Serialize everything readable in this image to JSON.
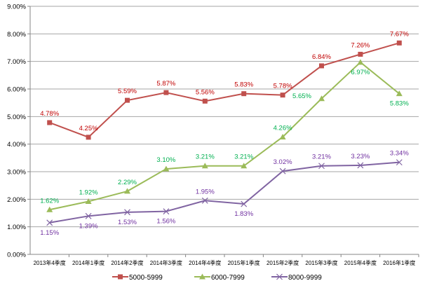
{
  "chart_data": {
    "type": "line",
    "title": "",
    "xlabel": "",
    "ylabel": "",
    "ylim": [
      0,
      9
    ],
    "y_ticks": [
      "0.00%",
      "1.00%",
      "2.00%",
      "3.00%",
      "4.00%",
      "5.00%",
      "6.00%",
      "7.00%",
      "8.00%",
      "9.00%"
    ],
    "grid": true,
    "legend_position": "bottom",
    "categories": [
      "2013年4季度",
      "2014年1季度",
      "2014年2季度",
      "2014年3季度",
      "2014年4季度",
      "2015年1季度",
      "2015年2季度",
      "2015年3季度",
      "2015年4季度",
      "2016年1季度"
    ],
    "series": [
      {
        "name": "5000-5999",
        "line_color": "#C0504D",
        "label_color": "#C00000",
        "marker": "square",
        "values": [
          4.78,
          4.25,
          5.59,
          5.87,
          5.56,
          5.83,
          5.78,
          6.84,
          7.26,
          7.67
        ],
        "labels": [
          "4.78%",
          "4.25%",
          "5.59%",
          "5.87%",
          "5.56%",
          "5.83%",
          "5.78%",
          "6.84%",
          "7.26%",
          "7.67%"
        ],
        "label_pos": [
          "above",
          "above",
          "above",
          "above",
          "above",
          "above",
          "above",
          "above",
          "above",
          "above"
        ]
      },
      {
        "name": "6000-7999",
        "line_color": "#9BBB59",
        "label_color": "#00B050",
        "marker": "triangle",
        "values": [
          1.62,
          1.92,
          2.29,
          3.1,
          3.21,
          3.21,
          4.26,
          5.65,
          6.97,
          5.83
        ],
        "labels": [
          "1.62%",
          "1.92%",
          "2.29%",
          "3.10%",
          "3.21%",
          "3.21%",
          "4.26%",
          "5.65%",
          "6.97%",
          "5.83%"
        ],
        "label_pos": [
          "above",
          "above",
          "above",
          "above",
          "above",
          "above",
          "above",
          "left",
          "below",
          "below"
        ]
      },
      {
        "name": "8000-9999",
        "line_color": "#8064A2",
        "label_color": "#7030A0",
        "marker": "x",
        "values": [
          1.15,
          1.39,
          1.53,
          1.56,
          1.95,
          1.83,
          3.02,
          3.21,
          3.23,
          3.34
        ],
        "labels": [
          "1.15%",
          "1.39%",
          "1.53%",
          "1.56%",
          "1.95%",
          "1.83%",
          "3.02%",
          "3.21%",
          "3.23%",
          "3.34%"
        ],
        "label_pos": [
          "below",
          "below",
          "below",
          "below",
          "above",
          "below",
          "above",
          "above",
          "above",
          "above"
        ]
      }
    ]
  }
}
